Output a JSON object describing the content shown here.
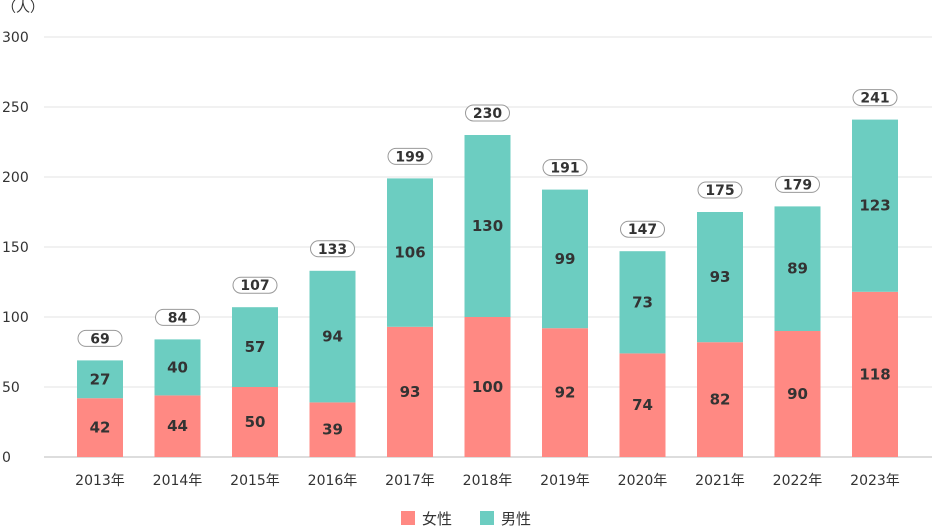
{
  "chart_data": {
    "type": "bar",
    "stacked": true,
    "unit_label": "（人）",
    "categories": [
      "2013年",
      "2014年",
      "2015年",
      "2016年",
      "2017年",
      "2018年",
      "2019年",
      "2020年",
      "2021年",
      "2022年",
      "2023年"
    ],
    "series": [
      {
        "name": "女性",
        "color": "#ff8983",
        "values": [
          42,
          44,
          50,
          39,
          93,
          100,
          92,
          74,
          82,
          90,
          118
        ]
      },
      {
        "name": "男性",
        "color": "#6ccdc1",
        "values": [
          27,
          40,
          57,
          94,
          106,
          130,
          99,
          73,
          93,
          89,
          123
        ]
      }
    ],
    "totals": [
      69,
      84,
      107,
      133,
      199,
      230,
      191,
      147,
      175,
      179,
      241
    ],
    "ylim": [
      0,
      300
    ],
    "yticks": [
      0,
      50,
      100,
      150,
      200,
      250,
      300
    ],
    "grid": true,
    "legend_position": "bottom-center"
  }
}
